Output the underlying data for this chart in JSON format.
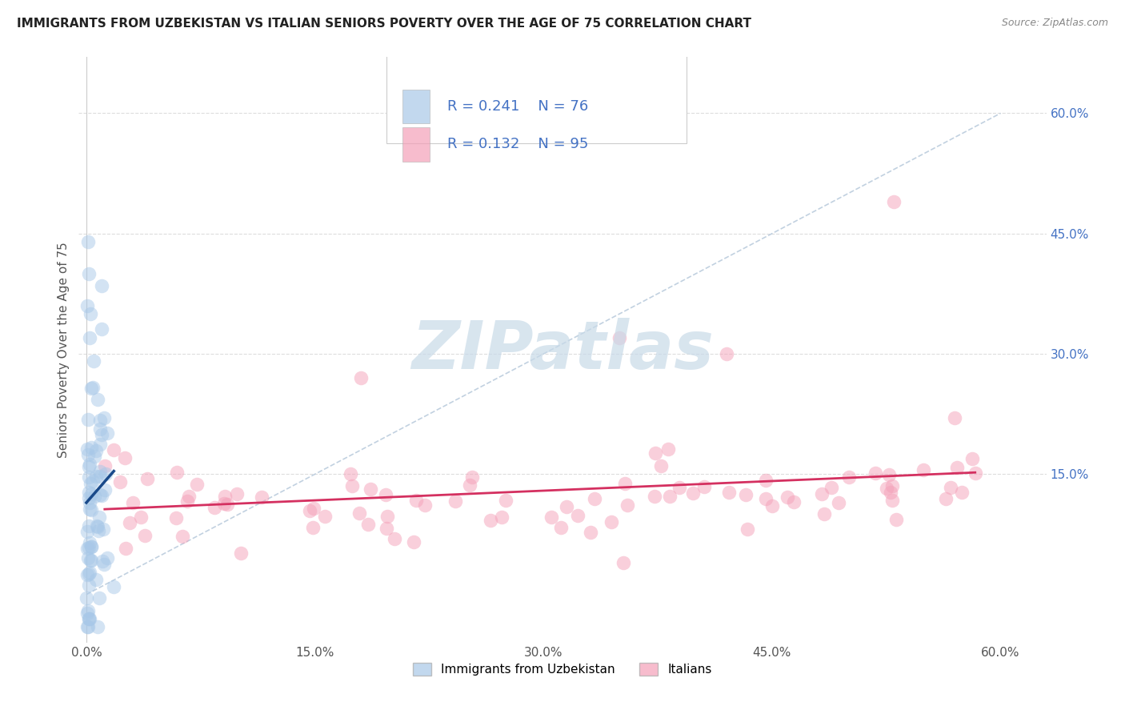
{
  "title": "IMMIGRANTS FROM UZBEKISTAN VS ITALIAN SENIORS POVERTY OVER THE AGE OF 75 CORRELATION CHART",
  "source": "Source: ZipAtlas.com",
  "ylabel": "Seniors Poverty Over the Age of 75",
  "xlim_min": -0.005,
  "xlim_max": 0.63,
  "ylim_min": -0.06,
  "ylim_max": 0.67,
  "xtick_values": [
    0.0,
    0.15,
    0.3,
    0.45,
    0.6
  ],
  "xtick_labels": [
    "0.0%",
    "15.0%",
    "30.0%",
    "45.0%",
    "60.0%"
  ],
  "ytick_values": [
    0.15,
    0.3,
    0.45,
    0.6
  ],
  "ytick_labels": [
    "15.0%",
    "30.0%",
    "45.0%",
    "60.0%"
  ],
  "blue_fill": "#a8c8e8",
  "pink_fill": "#f4a0b8",
  "blue_line_color": "#1a4a8a",
  "pink_line_color": "#d43060",
  "legend_text_color": "#4472c4",
  "watermark_text": "ZIPatlas",
  "watermark_color": "#c8dae8",
  "background_color": "#ffffff",
  "series1_label": "Immigrants from Uzbekistan",
  "series2_label": "Italians",
  "legend_R1": "0.241",
  "legend_N1": "76",
  "legend_R2": "0.132",
  "legend_N2": "95",
  "dashed_line_color": "#bbccdd",
  "grid_color": "#dddddd",
  "grid_linestyle": "--",
  "dot_size": 160,
  "dot_alpha": 0.5
}
